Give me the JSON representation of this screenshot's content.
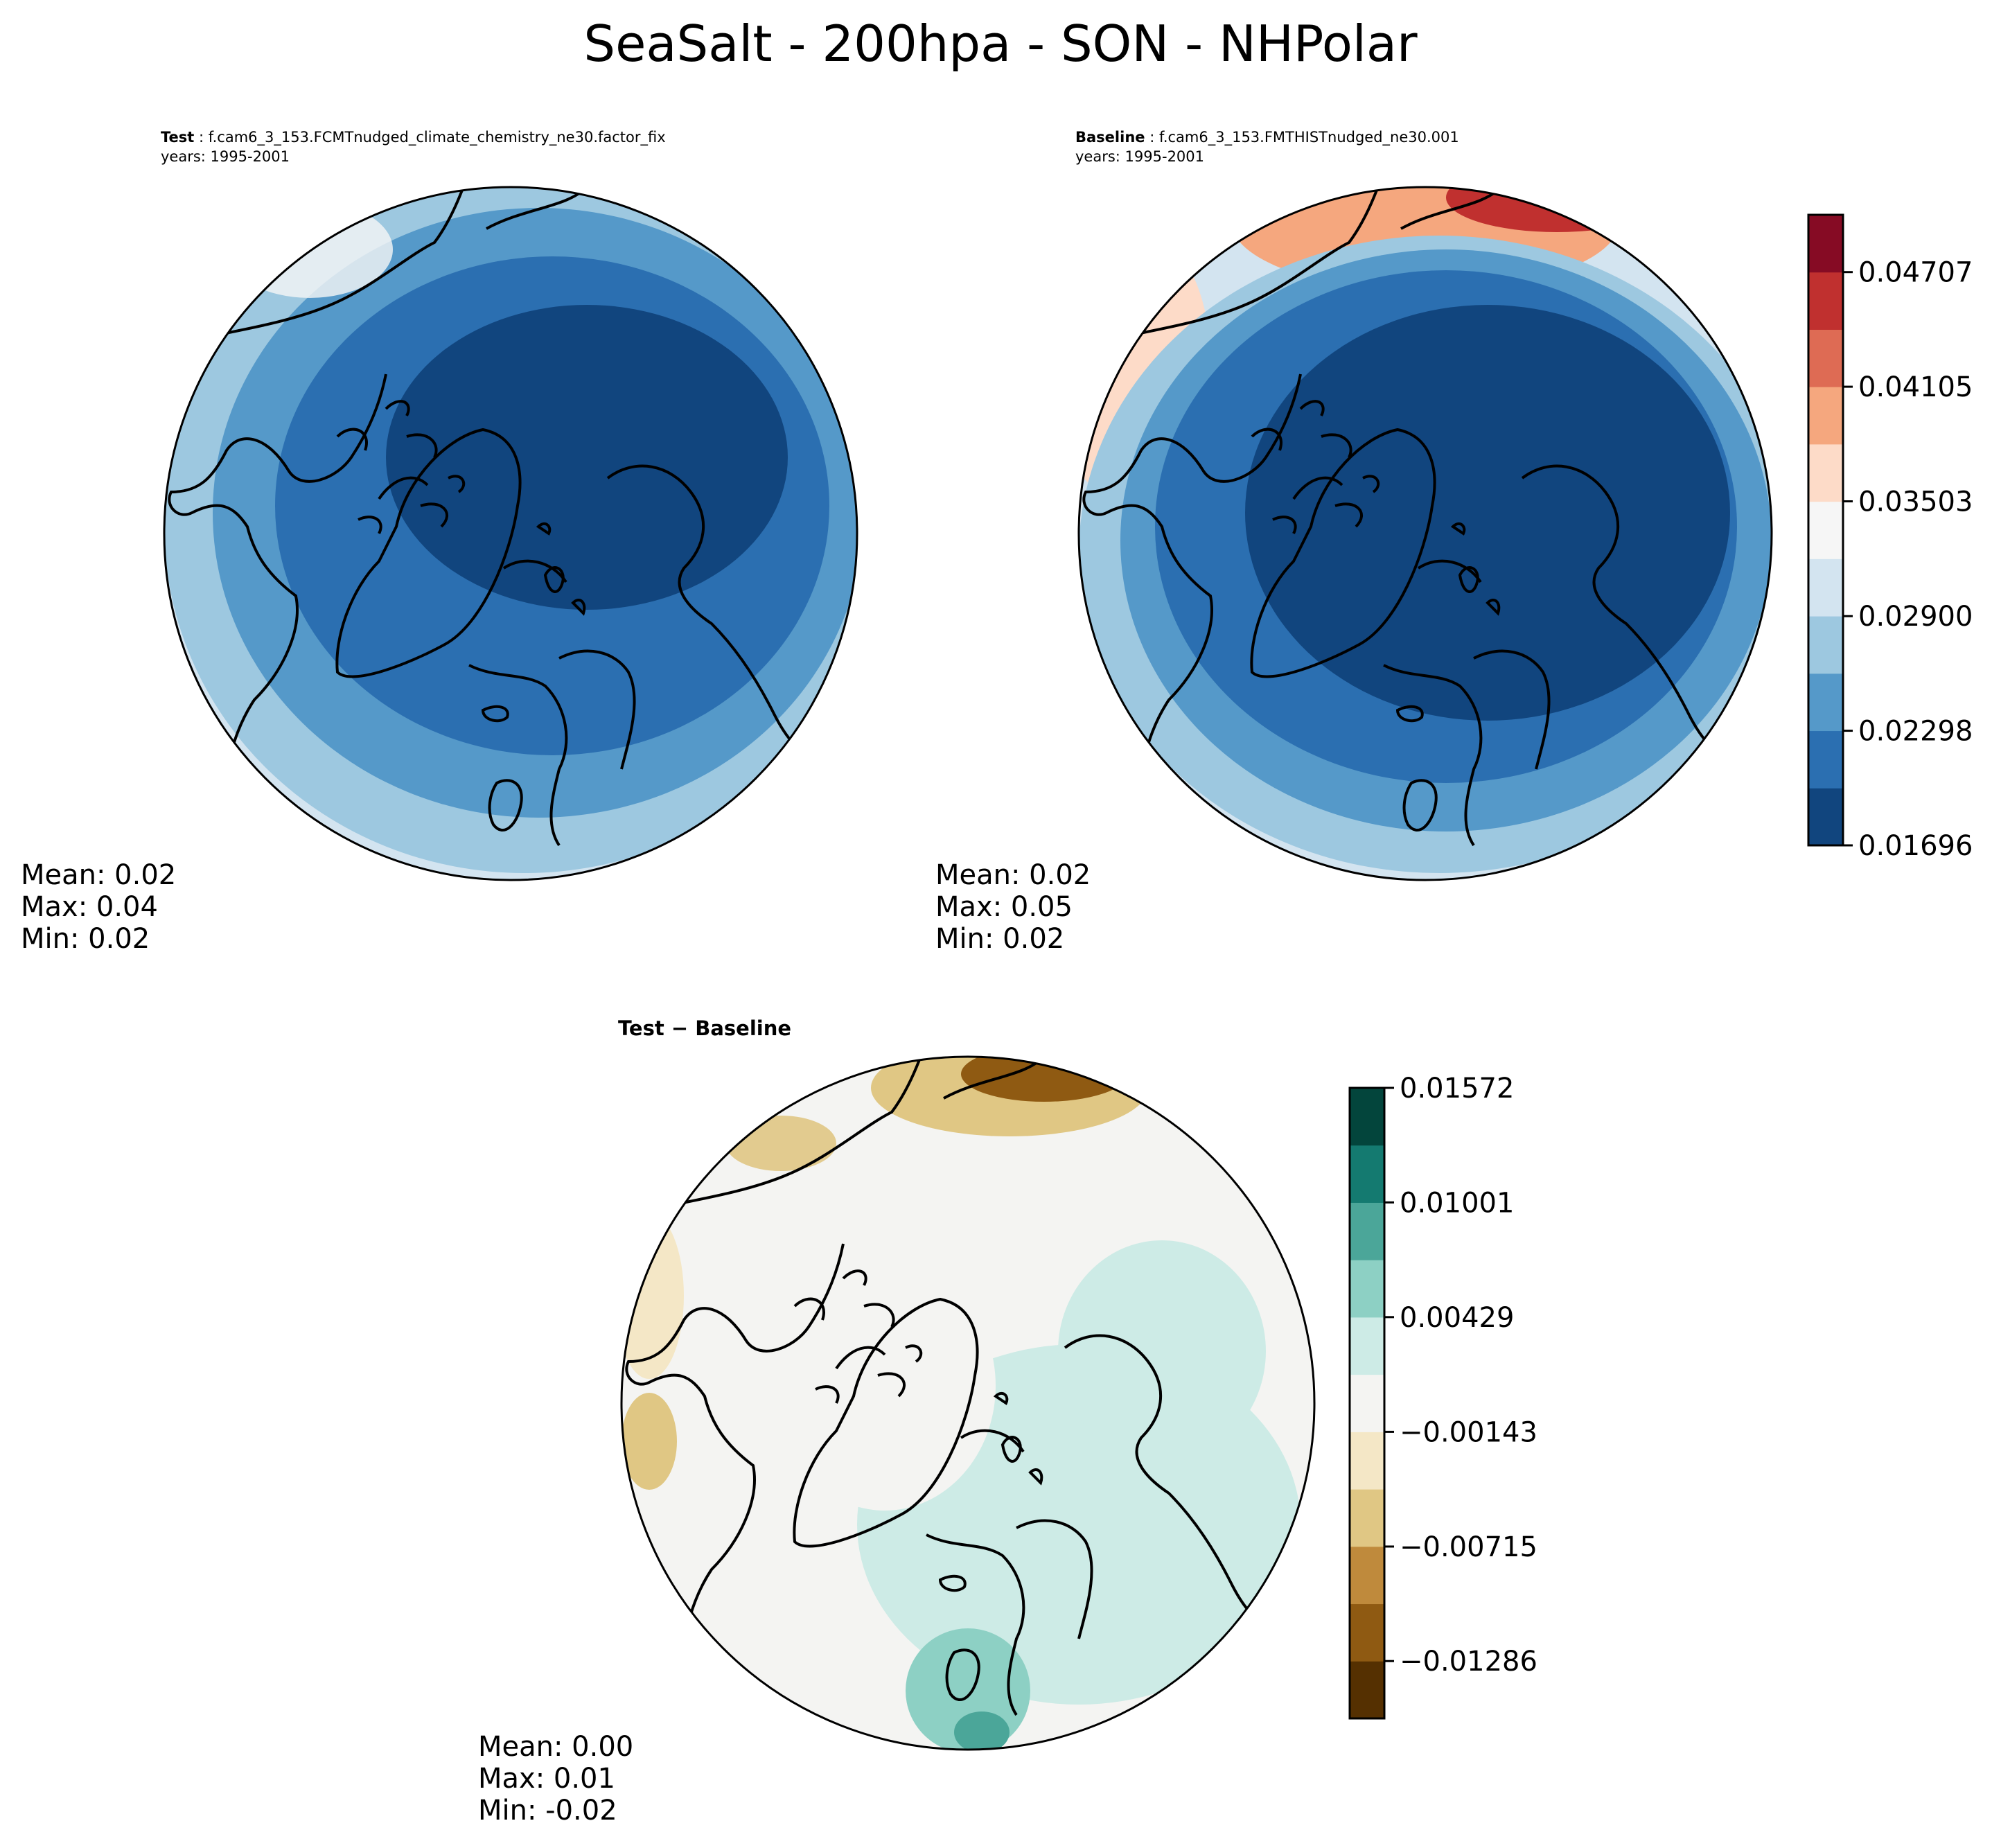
{
  "figure": {
    "title": "SeaSalt - 200hpa - SON - NHPolar"
  },
  "panels": {
    "test": {
      "label": "Test",
      "case": "f.cam6_3_153.FCMTnudged_climate_chemistry_ne30.factor_fix",
      "years": "years: 1995-2001",
      "stats": {
        "mean": "Mean:  0.02",
        "max": "Max:  0.04",
        "min": "Min:  0.02"
      }
    },
    "baseline": {
      "label": "Baseline",
      "case": "f.cam6_3_153.FMTHISTnudged_ne30.001",
      "years": "years: 1995-2001",
      "stats": {
        "mean": "Mean:  0.02",
        "max": "Max:  0.05",
        "min": "Min:  0.02"
      }
    },
    "diff": {
      "label": "Test − Baseline",
      "stats": {
        "mean": "Mean:  0.00",
        "max": "Max:  0.01",
        "min": "Min: -0.02"
      }
    }
  },
  "chart_data": [
    {
      "type": "heatmap",
      "panel": "Test",
      "projection": "north polar stereographic",
      "summary": {
        "mean": 0.02,
        "max": 0.04,
        "min": 0.02
      },
      "colorbar": "shared with Baseline"
    },
    {
      "type": "heatmap",
      "panel": "Baseline",
      "projection": "north polar stereographic",
      "summary": {
        "mean": 0.02,
        "max": 0.05,
        "min": 0.02
      },
      "colorbar": {
        "levels_min": 0.01696,
        "levels_max": 0.05008,
        "ticks": [
          "0.04707",
          "0.04105",
          "0.03503",
          "0.02900",
          "0.02298",
          "0.01696"
        ],
        "colors": [
          "#11457e",
          "#2b6fb1",
          "#5599c9",
          "#9dc8e0",
          "#d3e4f0",
          "#f6f6f6",
          "#fddbc8",
          "#f5a77e",
          "#de6b54",
          "#c0302f",
          "#860b24"
        ]
      }
    },
    {
      "type": "heatmap",
      "panel": "Test − Baseline",
      "projection": "north polar stereographic",
      "summary": {
        "mean": 0.0,
        "max": 0.01,
        "min": -0.02
      },
      "colorbar": {
        "levels_min": -0.01572,
        "levels_max": 0.01572,
        "ticks": [
          "0.01572",
          "0.01001",
          "0.00429",
          "−0.00143",
          "−0.00715",
          "−0.01286"
        ],
        "colors": [
          "#553001",
          "#8f5a12",
          "#bf8a3c",
          "#e0c784",
          "#f4e7c6",
          "#f4f4f2",
          "#cdebe6",
          "#8dd0c4",
          "#4ba699",
          "#147a70",
          "#03453c"
        ]
      }
    }
  ],
  "colors": {
    "test_base": "#2b6fb1",
    "baseline_base": "#2b6fb1",
    "diff_base": "#f4f4f2"
  }
}
